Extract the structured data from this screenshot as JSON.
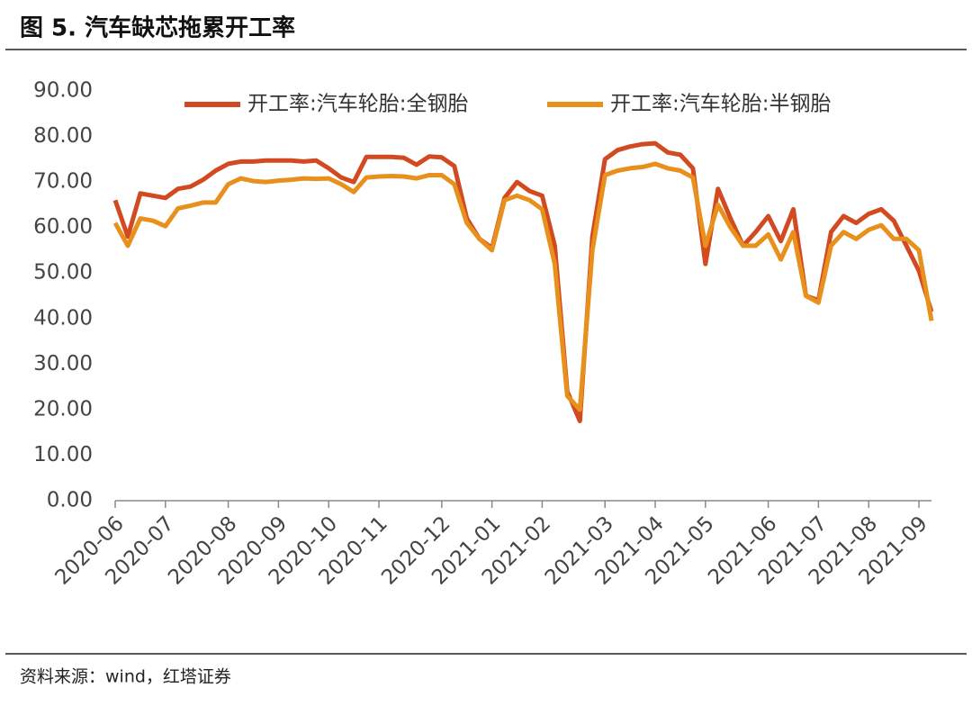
{
  "chart_data": {
    "type": "line",
    "title": "图 5. 汽车缺芯拖累开工率",
    "source": "资料来源：wind，红塔证券",
    "categories": [
      "2020-06",
      null,
      null,
      null,
      "2020-07",
      null,
      null,
      null,
      null,
      "2020-08",
      null,
      null,
      null,
      "2020-09",
      null,
      null,
      null,
      "2020-10",
      null,
      null,
      null,
      "2020-11",
      null,
      null,
      null,
      null,
      "2020-12",
      null,
      null,
      null,
      "2021-01",
      null,
      null,
      null,
      "2021-02",
      null,
      null,
      null,
      null,
      "2021-03",
      null,
      null,
      null,
      "2021-04",
      null,
      null,
      null,
      "2021-05",
      null,
      null,
      null,
      null,
      "2021-06",
      null,
      null,
      null,
      "2021-07",
      null,
      null,
      null,
      "2021-08",
      null,
      null,
      null,
      "2021-09",
      null
    ],
    "series": [
      {
        "name": "开工率:汽车轮胎:全钢胎",
        "color": "#d14a22",
        "values": [
          66,
          58,
          67.5,
          67,
          66.5,
          68.5,
          69,
          70.5,
          72.5,
          74,
          74.5,
          74.5,
          74.7,
          74.7,
          74.7,
          74.5,
          74.7,
          73,
          71,
          70,
          75.5,
          75.5,
          75.5,
          75.3,
          73.8,
          75.6,
          75.4,
          73.5,
          62,
          57.5,
          55.5,
          66.5,
          70,
          68,
          67,
          56,
          24,
          17.5,
          58,
          75,
          77,
          77.8,
          78.3,
          78.5,
          76.5,
          76,
          73,
          52,
          68.5,
          62,
          56,
          59,
          62.5,
          57,
          64,
          45,
          44,
          59,
          62.5,
          61,
          63,
          64,
          61.5,
          56,
          50.5,
          41.5
        ]
      },
      {
        "name": "开工率:汽车轮胎:半钢胎",
        "color": "#e8901c",
        "values": [
          61,
          56,
          62,
          61.5,
          60.3,
          64.2,
          64.8,
          65.5,
          65.5,
          69.5,
          70.8,
          70.2,
          70,
          70.3,
          70.5,
          70.8,
          70.7,
          70.8,
          69.5,
          67.8,
          71,
          71.2,
          71.3,
          71.2,
          70.8,
          71.5,
          71.5,
          69.5,
          61,
          57.5,
          55,
          66,
          67,
          66,
          64,
          52,
          23,
          20,
          55,
          71.5,
          72.5,
          73,
          73.3,
          74,
          73,
          72.5,
          71,
          56,
          65,
          60,
          56,
          56,
          58.5,
          53,
          59,
          45,
          43.5,
          56,
          59,
          57.5,
          59.5,
          60.5,
          57.5,
          57.5,
          55,
          39.5
        ]
      }
    ],
    "ylim": [
      0,
      90
    ],
    "yticks": [
      {
        "value": 0,
        "label": "0.00"
      },
      {
        "value": 10,
        "label": "10.00"
      },
      {
        "value": 20,
        "label": "20.00"
      },
      {
        "value": 30,
        "label": "30.00"
      },
      {
        "value": 40,
        "label": "40.00"
      },
      {
        "value": 50,
        "label": "50.00"
      },
      {
        "value": 60,
        "label": "60.00"
      },
      {
        "value": 70,
        "label": "70.00"
      },
      {
        "value": 80,
        "label": "80.00"
      },
      {
        "value": 90,
        "label": "90.00"
      }
    ],
    "grid": false,
    "legend": "top"
  }
}
